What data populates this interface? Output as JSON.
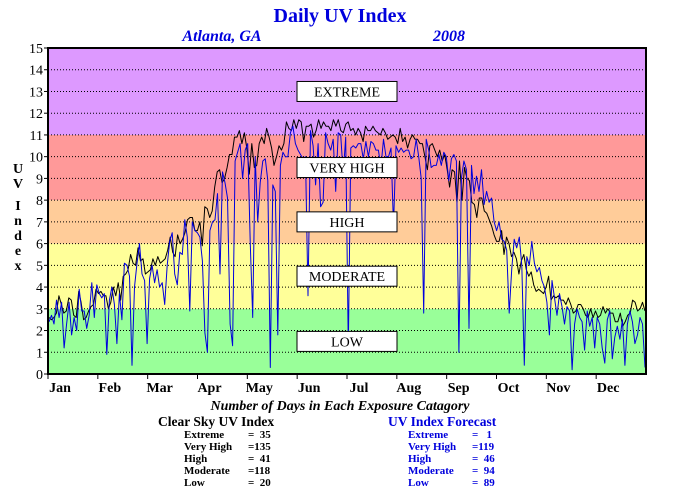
{
  "chart_data": {
    "type": "line",
    "title": "Daily UV Index",
    "subtitle_left": "Atlanta, GA",
    "subtitle_right": "2008",
    "ylabel": "UV Index",
    "ylim": [
      0,
      15
    ],
    "yticks": [
      "0",
      "1",
      "2",
      "3",
      "4",
      "5",
      "6",
      "7",
      "8",
      "9",
      "10",
      "11",
      "12",
      "13",
      "14",
      "15"
    ],
    "xticks": [
      "Jan",
      "Feb",
      "Mar",
      "Apr",
      "May",
      "Jun",
      "Jul",
      "Aug",
      "Sep",
      "Oct",
      "Nov",
      "Dec"
    ],
    "grid": true,
    "bands": [
      {
        "label": "LOW",
        "from": 0,
        "to": 3,
        "color": "#99ff99"
      },
      {
        "label": "MODERATE",
        "from": 3,
        "to": 6,
        "color": "#ffff99"
      },
      {
        "label": "HIGH",
        "from": 6,
        "to": 8,
        "color": "#ffcc99"
      },
      {
        "label": "VERY HIGH",
        "from": 8,
        "to": 11,
        "color": "#ff9999"
      },
      {
        "label": "EXTREME",
        "from": 11,
        "to": 15,
        "color": "#dd99ff"
      }
    ],
    "series": [
      {
        "name": "Clear Sky UV Index",
        "color": "#000000",
        "values": [
          2.6,
          2.5,
          2.6,
          2.8,
          3.6,
          3.2,
          2.8,
          2.9,
          3.5,
          3.4,
          2.7,
          2.6,
          3.8,
          3.3,
          2.5,
          2.6,
          2.9,
          3.1,
          3.2,
          3.9,
          3.7,
          3.8,
          3.6,
          3.6,
          3.0,
          3.3,
          4.0,
          3.6,
          4.2,
          3.4,
          4.5,
          4.6,
          4.8,
          5.5,
          5.1,
          5.0,
          5.8,
          5.2,
          5.3,
          4.6,
          4.7,
          4.8,
          5.3,
          5.0,
          5.4,
          5.1,
          5.2,
          5.3,
          5.7,
          6.3,
          5.6,
          5.4,
          6.4,
          6.0,
          6.2,
          6.5,
          7.1,
          7.2,
          7.2,
          6.6,
          6.6,
          7.0,
          5.9,
          7.7,
          7.6,
          7.2,
          7.5,
          8.6,
          9.3,
          9.4,
          8.8,
          9.0,
          9.5,
          10.1,
          10.1,
          10.9,
          10.9,
          11.2,
          10.6,
          11.1,
          10.4,
          9.2,
          10.6,
          9.5,
          9.6,
          10.6,
          10.9,
          10.6,
          11.3,
          10.9,
          10.4,
          9.6,
          10.0,
          10.5,
          10.3,
          10.6,
          11.6,
          11.3,
          11.2,
          11.7,
          11.3,
          11.7,
          11.6,
          10.7,
          11.4,
          11.4,
          11.5,
          10.9,
          11.2,
          11.7,
          11.3,
          11.6,
          11.4,
          11.4,
          11.2,
          11.7,
          11.4,
          11.7,
          11.2,
          11.1,
          11.5,
          11.6,
          11.2,
          11.3,
          11.0,
          11.3,
          11.1,
          10.7,
          11.4,
          11.2,
          11.2,
          11.4,
          11.2,
          11.1,
          11.0,
          11.3,
          11.1,
          10.8,
          10.9,
          11.0,
          10.9,
          10.6,
          11.3,
          10.7,
          10.9,
          10.4,
          10.8,
          11.0,
          10.8,
          10.8,
          10.6,
          10.6,
          10.0,
          9.4,
          10.5,
          10.6,
          10.3,
          10.0,
          10.3,
          9.8,
          10.1,
          9.4,
          8.6,
          9.4,
          9.3,
          7.9,
          9.8,
          8.0,
          9.5,
          9.0,
          8.9,
          7.9,
          7.8,
          7.2,
          8.1,
          8.1,
          7.5,
          7.4,
          7.1,
          6.8,
          6.4,
          6.1,
          6.1,
          6.6,
          5.5,
          6.3,
          6.0,
          5.4,
          5.6,
          5.3,
          4.6,
          5.2,
          5.5,
          4.8,
          4.5,
          4.7,
          4.1,
          3.8,
          3.9,
          3.8,
          3.7,
          4.0,
          4.5,
          3.4,
          3.6,
          3.5,
          3.6,
          3.4,
          3.4,
          3.2,
          3.5,
          3.2,
          2.8,
          2.9,
          3.2,
          3.2,
          3.0,
          2.7,
          2.6,
          3.0,
          2.6,
          2.9,
          2.6,
          2.7,
          3.1,
          2.8,
          3.0,
          2.8,
          2.8,
          2.4,
          2.4,
          2.8,
          2.2,
          2.4,
          2.7,
          2.8,
          3.4,
          3.3,
          2.9,
          3.0,
          3.3,
          2.9
        ]
      },
      {
        "name": "UV Index Forecast",
        "color": "#0000dd",
        "values": [
          2.4,
          2.7,
          2.3,
          3.4,
          2.6,
          3.3,
          1.2,
          2.3,
          3.3,
          1.8,
          2.6,
          2.0,
          3.9,
          2.9,
          2.9,
          2.1,
          2.7,
          4.2,
          2.6,
          4.1,
          3.7,
          3.5,
          3.7,
          0.9,
          3.4,
          4.0,
          3.2,
          1.4,
          3.7,
          2.5,
          5.1,
          5.0,
          4.5,
          0.4,
          4.0,
          5.1,
          6.0,
          4.6,
          4.3,
          1.4,
          4.4,
          5.0,
          4.2,
          4.8,
          4.0,
          4.2,
          3.2,
          5.0,
          6.1,
          6.5,
          4.6,
          4.1,
          5.6,
          5.5,
          7.1,
          6.3,
          2.9,
          7.0,
          6.6,
          6.5,
          6.3,
          5.2,
          1.9,
          1.0,
          6.6,
          7.0,
          7.1,
          8.3,
          4.6,
          9.3,
          8.8,
          8.1,
          2.3,
          1.3,
          9.8,
          10.2,
          10.6,
          9.0,
          10.3,
          10.6,
          6.1,
          2.6,
          10.0,
          7.0,
          8.8,
          9.8,
          9.9,
          8.9,
          0.3,
          8.7,
          8.4,
          1.8,
          9.6,
          10.2,
          10.0,
          10.0,
          11.1,
          11.4,
          10.6,
          10.3,
          10.1,
          9.9,
          10.0,
          3.6,
          11.2,
          10.5,
          8.7,
          10.6,
          7.7,
          7.9,
          11.1,
          10.6,
          10.3,
          10.8,
          8.4,
          11.1,
          11.0,
          9.2,
          10.9,
          1.2,
          10.4,
          10.5,
          10.4,
          10.6,
          10.6,
          9.9,
          10.7,
          10.0,
          10.7,
          10.6,
          10.3,
          10.3,
          9.5,
          10.8,
          10.0,
          10.0,
          10.4,
          6.8,
          10.5,
          10.2,
          10.4,
          10.2,
          10.3,
          10.3,
          9.9,
          10.0,
          10.8,
          10.0,
          9.0,
          2.8,
          10.8,
          10.3,
          9.5,
          9.6,
          9.6,
          10.1,
          9.6,
          10.2,
          10.0,
          8.9,
          9.9,
          10.1,
          9.8,
          1.0,
          9.0,
          9.8,
          9.4,
          2.1,
          9.6,
          8.3,
          9.1,
          8.4,
          9.4,
          7.8,
          8.4,
          7.9,
          8.1,
          7.0,
          6.6,
          7.0,
          6.2,
          6.1,
          5.7,
          2.8,
          4.8,
          6.2,
          5.8,
          6.3,
          5.0,
          0.4,
          5.4,
          5.0,
          6.1,
          5.1,
          4.7,
          4.9,
          4.3,
          4.0,
          3.3,
          1.8,
          4.3,
          3.5,
          2.7,
          3.7,
          3.1,
          2.3,
          3.1,
          2.9,
          0.2,
          2.3,
          3.0,
          2.6,
          2.4,
          1.1,
          2.9,
          2.2,
          2.6,
          1.2,
          2.6,
          2.3,
          1.2,
          0.5,
          2.5,
          2.9,
          0.7,
          1.7,
          2.2,
          1.6,
          2.5,
          0.4,
          2.3,
          2.9,
          2.4,
          1.4,
          1.8,
          2.6,
          2.3,
          0.3
        ]
      }
    ]
  },
  "caption": "Number of Days in Each Exposure Catagory",
  "stats": {
    "clear_sky": {
      "title": "Clear Sky UV Index",
      "rows": [
        {
          "name": "Extreme",
          "value": "=  35"
        },
        {
          "name": "Very High",
          "value": "=135"
        },
        {
          "name": "High",
          "value": "=  41"
        },
        {
          "name": "Moderate",
          "value": "=118"
        },
        {
          "name": "Low",
          "value": "=  20"
        }
      ]
    },
    "forecast": {
      "title": "UV Index Forecast",
      "rows": [
        {
          "name": "Extreme",
          "value": "=   1"
        },
        {
          "name": "Very High",
          "value": "=119"
        },
        {
          "name": "High",
          "value": "=  46"
        },
        {
          "name": "Moderate",
          "value": "=  94"
        },
        {
          "name": "Low",
          "value": "=  89"
        }
      ]
    }
  }
}
